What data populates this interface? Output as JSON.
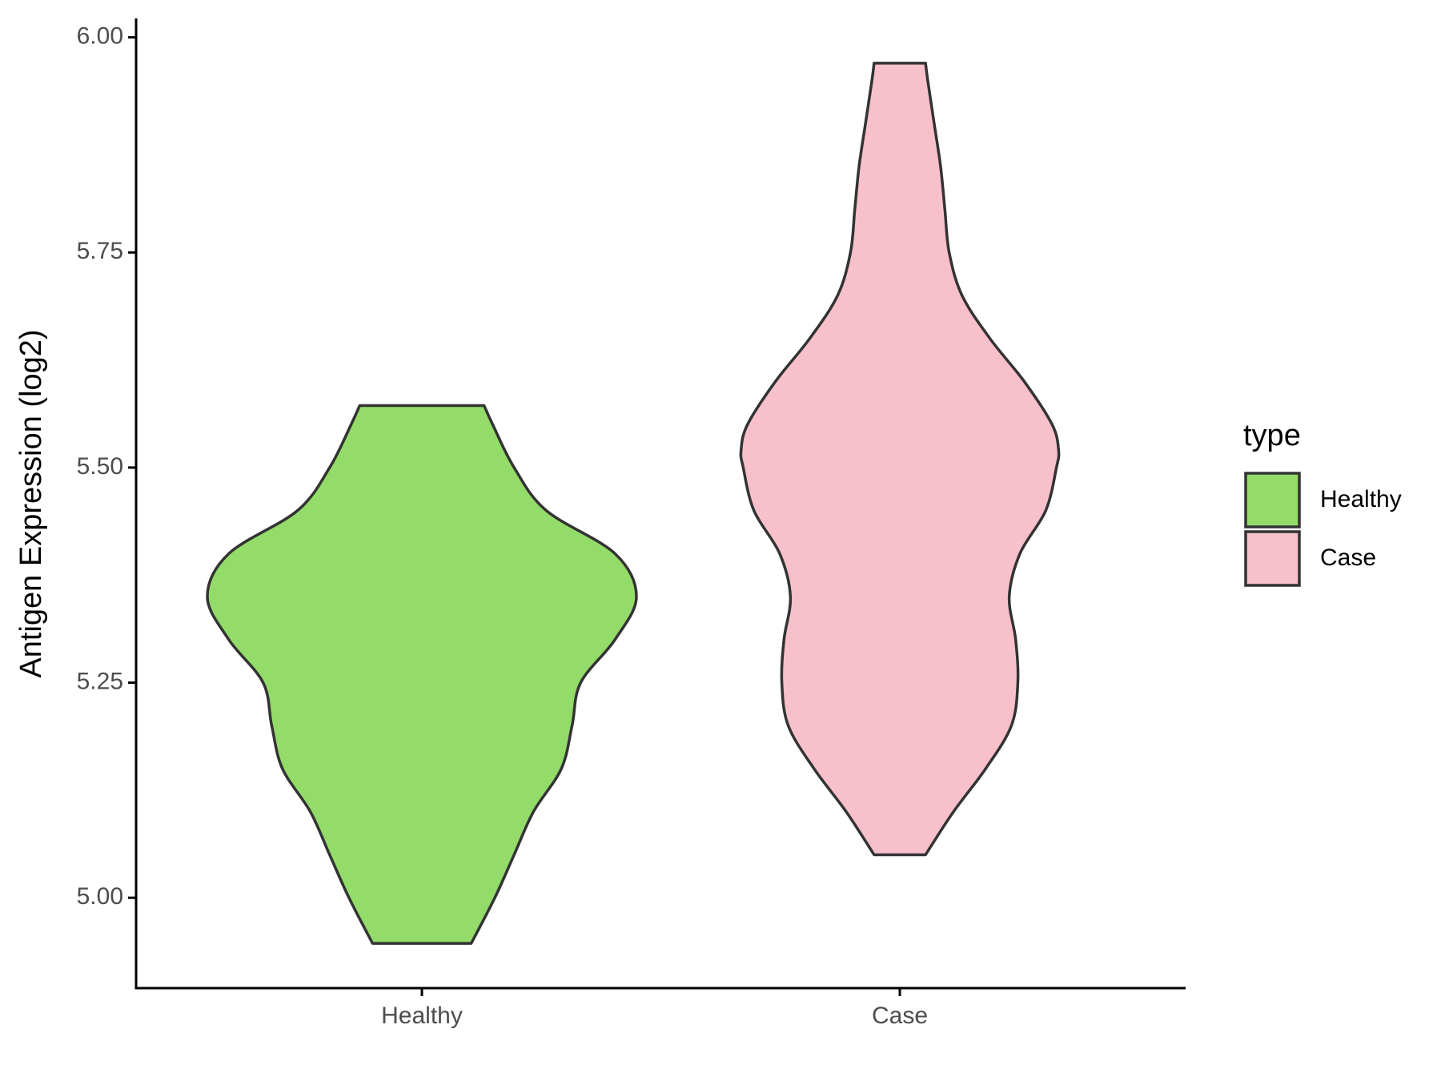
{
  "chart_data": {
    "type": "violin",
    "y_label": "Antigen Expression (log2)",
    "categories": [
      "Healthy",
      "Case"
    ],
    "legend_title": "type",
    "series": [
      {
        "name": "Healthy",
        "color": "#93dc6a",
        "y": [
          4.947,
          5.0,
          5.05,
          5.1,
          5.15,
          5.2,
          5.25,
          5.3,
          5.35,
          5.4,
          5.45,
          5.5,
          5.55,
          5.572
        ],
        "density": [
          0.23,
          0.34,
          0.43,
          0.52,
          0.65,
          0.7,
          0.74,
          0.9,
          1.0,
          0.9,
          0.58,
          0.43,
          0.33,
          0.29
        ]
      },
      {
        "name": "Case",
        "color": "#f8c0cb",
        "y": [
          5.05,
          5.1,
          5.15,
          5.2,
          5.25,
          5.3,
          5.35,
          5.4,
          5.45,
          5.5,
          5.52,
          5.55,
          5.6,
          5.65,
          5.7,
          5.75,
          5.8,
          5.85,
          5.9,
          5.95,
          5.97
        ],
        "density": [
          0.12,
          0.25,
          0.4,
          0.52,
          0.55,
          0.54,
          0.51,
          0.56,
          0.68,
          0.73,
          0.74,
          0.71,
          0.58,
          0.42,
          0.29,
          0.23,
          0.21,
          0.19,
          0.16,
          0.13,
          0.12
        ]
      }
    ],
    "ylim": [
      4.895,
      6.022
    ],
    "yticks": [
      {
        "value": 5,
        "label": "5.00"
      },
      {
        "value": 5.25,
        "label": "5.25"
      },
      {
        "value": 5.5,
        "label": "5.50"
      },
      {
        "value": 5.75,
        "label": "5.75"
      },
      {
        "value": 6,
        "label": "6.00"
      }
    ]
  }
}
